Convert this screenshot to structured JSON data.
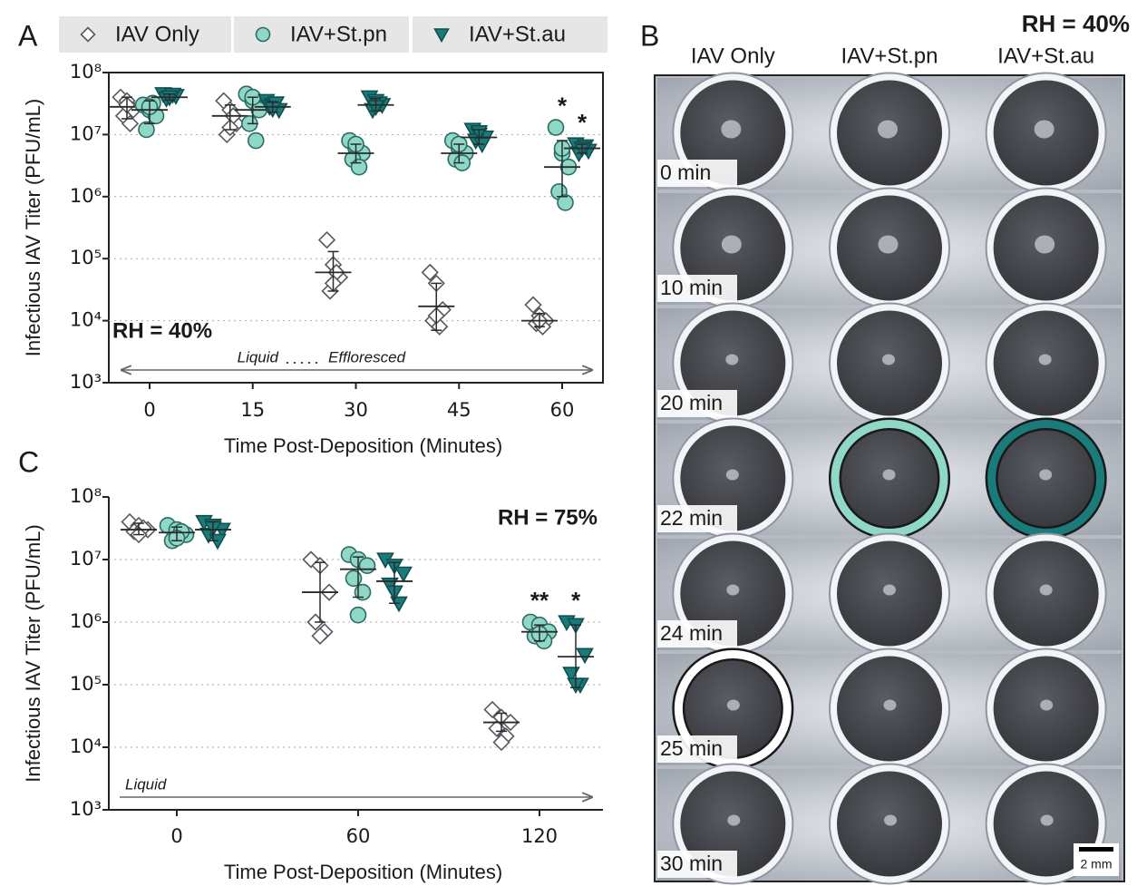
{
  "chart_data": [
    {
      "type": "strip",
      "panel_label": "A",
      "condition_label": "RH = 40%",
      "y_label": "Infectious IAV Titer (PFU/mL)",
      "x_label": "Time Post-Deposition (Minutes)",
      "categories": [
        "0",
        "15",
        "30",
        "45",
        "60"
      ],
      "log_y": true,
      "grid": true,
      "frame": true,
      "legend": true,
      "ylim": [
        1000,
        100000000
      ],
      "yticks": [
        {
          "value": 1000,
          "label": "10³"
        },
        {
          "value": 10000,
          "label": "10⁴"
        },
        {
          "value": 100000,
          "label": "10⁵"
        },
        {
          "value": 1000000,
          "label": "10⁶"
        },
        {
          "value": 10000000,
          "label": "10⁷"
        },
        {
          "value": 100000000,
          "label": "10⁸"
        }
      ],
      "phase_labels": [
        "Liquid",
        "Effloresced"
      ],
      "series": [
        {
          "name": "IAV Only",
          "marker": "diamond",
          "color": "#ffffff",
          "values": [
            [
              40000000,
              35000000,
              25000000,
              20000000,
              15000000,
              30000000
            ],
            [
              35000000,
              25000000,
              15000000,
              10000000,
              20000000,
              13000000
            ],
            [
              200000,
              80000,
              50000,
              30000,
              60000,
              40000
            ],
            [
              60000,
              40000,
              15000,
              10000,
              8000,
              12000
            ],
            [
              18000,
              12000,
              10000,
              9000,
              8000,
              10000
            ]
          ],
          "means": [
            28000000,
            20000000,
            60000,
            17000,
            10000
          ],
          "error_ranges": [
            [
              18000000,
              40000000
            ],
            [
              12000000,
              30000000
            ],
            [
              30000,
              130000
            ],
            [
              7000,
              40000
            ],
            [
              8000,
              13000
            ]
          ],
          "significance": [
            null,
            null,
            null,
            null,
            null
          ]
        },
        {
          "name": "IAV+St.pn",
          "marker": "circle",
          "color": "#8fd8c8",
          "values": [
            [
              30000000,
              25000000,
              20000000,
              12000000,
              32000000,
              28000000
            ],
            [
              45000000,
              35000000,
              25000000,
              15000000,
              8000000,
              40000000
            ],
            [
              8000000,
              6000000,
              5000000,
              4000000,
              3000000,
              7000000
            ],
            [
              8000000,
              6000000,
              5000000,
              4000000,
              3500000,
              7000000
            ],
            [
              13000000,
              5000000,
              3000000,
              1200000,
              800000,
              6000000
            ]
          ],
          "means": [
            25000000,
            25000000,
            5000000,
            5000000,
            3000000
          ],
          "error_ranges": [
            [
              15000000,
              35000000
            ],
            [
              15000000,
              40000000
            ],
            [
              3500000,
              7000000
            ],
            [
              3500000,
              7000000
            ],
            [
              1000000,
              8000000
            ]
          ],
          "significance": [
            null,
            null,
            null,
            null,
            "*"
          ]
        },
        {
          "name": "IAV+St.au",
          "marker": "triangle",
          "color": "#1b7b7b",
          "values": [
            [
              45000000,
              40000000,
              42000000,
              38000000,
              44000000,
              40000000
            ],
            [
              35000000,
              30000000,
              25000000,
              28000000,
              32000000,
              26000000
            ],
            [
              40000000,
              35000000,
              30000000,
              25000000,
              32000000,
              28000000
            ],
            [
              12000000,
              10000000,
              9000000,
              8000000,
              7000000,
              11000000
            ],
            [
              7000000,
              6000000,
              5500000,
              5000000,
              6500000,
              6000000
            ]
          ],
          "means": [
            40000000,
            28000000,
            30000000,
            9000000,
            6000000
          ],
          "error_ranges": [
            [
              36000000,
              45000000
            ],
            [
              23000000,
              34000000
            ],
            [
              24000000,
              38000000
            ],
            [
              7000000,
              12000000
            ],
            [
              5000000,
              7000000
            ]
          ],
          "significance": [
            null,
            null,
            null,
            null,
            "*"
          ]
        }
      ]
    },
    {
      "type": "strip",
      "panel_label": "C",
      "condition_label": "RH = 75%",
      "y_label": "Infectious IAV Titer (PFU/mL)",
      "x_label": "Time Post-Deposition (Minutes)",
      "categories": [
        "0",
        "60",
        "120"
      ],
      "log_y": true,
      "grid": true,
      "frame": false,
      "legend": false,
      "ylim": [
        1000,
        100000000
      ],
      "yticks": [
        {
          "value": 1000,
          "label": "10³"
        },
        {
          "value": 10000,
          "label": "10⁴"
        },
        {
          "value": 100000,
          "label": "10⁵"
        },
        {
          "value": 1000000,
          "label": "10⁶"
        },
        {
          "value": 10000000,
          "label": "10⁷"
        },
        {
          "value": 100000000,
          "label": "10⁸"
        }
      ],
      "phase_labels": [
        "Liquid"
      ],
      "series": [
        {
          "marker": "diamond",
          "color": "#ffffff",
          "values": [
            [
              40000000,
              35000000,
              30000000,
              28000000,
              32000000,
              25000000
            ],
            [
              10000000,
              8000000,
              3000000,
              1000000,
              700000,
              600000
            ],
            [
              40000,
              30000,
              25000,
              20000,
              15000,
              12000
            ]
          ],
          "means": [
            30000000,
            3000000,
            25000
          ],
          "error_ranges": [
            [
              25000000,
              38000000
            ],
            [
              1000000,
              9000000
            ],
            [
              18000,
              35000
            ]
          ],
          "significance": [
            null,
            null,
            null
          ]
        },
        {
          "marker": "circle",
          "color": "#8fd8c8",
          "values": [
            [
              35000000,
              30000000,
              25000000,
              20000000,
              28000000,
              22000000
            ],
            [
              12000000,
              10000000,
              8000000,
              5000000,
              3000000,
              1300000
            ],
            [
              1000000,
              900000,
              700000,
              600000,
              500000,
              650000
            ]
          ],
          "means": [
            27000000,
            7000000,
            700000
          ],
          "error_ranges": [
            [
              20000000,
              33000000
            ],
            [
              2500000,
              11000000
            ],
            [
              500000,
              900000
            ]
          ],
          "significance": [
            null,
            null,
            "**"
          ]
        },
        {
          "marker": "triangle",
          "color": "#1b7b7b",
          "values": [
            [
              40000000,
              35000000,
              30000000,
              25000000,
              20000000,
              32000000
            ],
            [
              10000000,
              8000000,
              6000000,
              4000000,
              2000000,
              3000000
            ],
            [
              1000000,
              900000,
              300000,
              150000,
              100000,
              100000
            ]
          ],
          "means": [
            30000000,
            4500000,
            280000
          ],
          "error_ranges": [
            [
              20000000,
              40000000
            ],
            [
              2000000,
              9000000
            ],
            [
              90000,
              900000
            ]
          ],
          "significance": [
            null,
            null,
            "*"
          ]
        }
      ]
    }
  ],
  "panel_b": {
    "label": "B",
    "title": "RH = 40%",
    "columns": [
      "IAV Only",
      "IAV+St.pn",
      "IAV+St.au"
    ],
    "rows": [
      "0 min",
      "10 min",
      "20 min",
      "22 min",
      "24 min",
      "25 min",
      "30 min"
    ],
    "scale_bar": "2 mm"
  }
}
